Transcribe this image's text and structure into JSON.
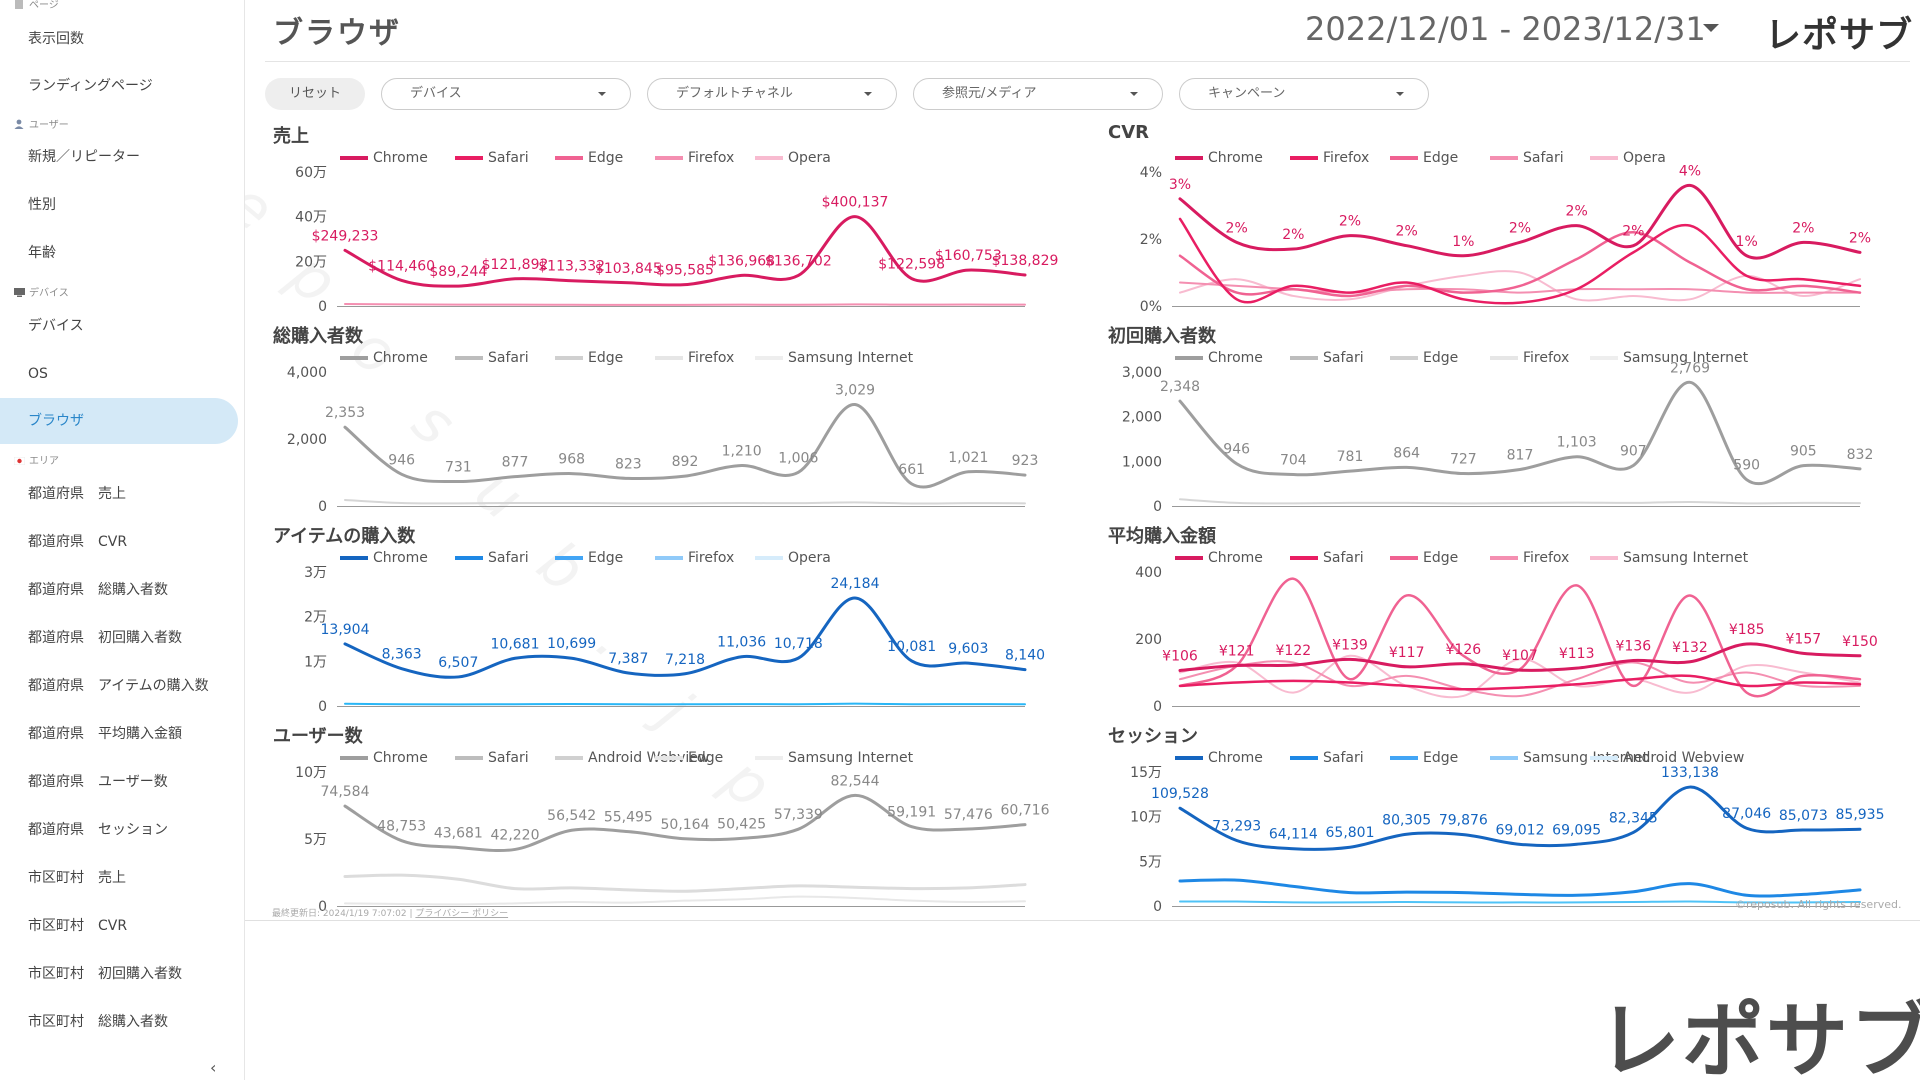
{
  "sidebar": {
    "items": [
      {
        "label": "表示回数",
        "y": 16,
        "active": false
      },
      {
        "label": "ランディングページ",
        "y": 63,
        "active": false
      },
      {
        "label": "新規／リピーター",
        "y": 134,
        "active": false
      },
      {
        "label": "性別",
        "y": 182,
        "active": false
      },
      {
        "label": "年齢",
        "y": 230,
        "active": false
      },
      {
        "label": "デバイス",
        "y": 303,
        "active": false
      },
      {
        "label": "OS",
        "y": 351,
        "active": false
      },
      {
        "label": "ブラウザ",
        "y": 398,
        "active": true
      },
      {
        "label": "都道府県　売上",
        "y": 471,
        "active": false
      },
      {
        "label": "都道府県　CVR",
        "y": 519,
        "active": false
      },
      {
        "label": "都道府県　総購入者数",
        "y": 567,
        "active": false
      },
      {
        "label": "都道府県　初回購入者数",
        "y": 615,
        "active": false
      },
      {
        "label": "都道府県　アイテムの購入数",
        "y": 663,
        "active": false
      },
      {
        "label": "都道府県　平均購入金額",
        "y": 711,
        "active": false
      },
      {
        "label": "都道府県　ユーザー数",
        "y": 759,
        "active": false
      },
      {
        "label": "都道府県　セッション",
        "y": 807,
        "active": false
      },
      {
        "label": "市区町村　売上",
        "y": 855,
        "active": false
      },
      {
        "label": "市区町村　CVR",
        "y": 903,
        "active": false
      },
      {
        "label": "市区町村　初回購入者数",
        "y": 951,
        "active": false
      },
      {
        "label": "市区町村　総購入者数",
        "y": 999,
        "active": false
      }
    ],
    "sections": [
      {
        "label": "ページ",
        "y": -4,
        "icon": "page-icon",
        "color": "#9aa"
      },
      {
        "label": "ユーザー",
        "y": 116,
        "icon": "user-icon",
        "color": "#7a8aa6"
      },
      {
        "label": "デバイス",
        "y": 284,
        "icon": "monitor-icon",
        "color": "#666"
      },
      {
        "label": "エリア",
        "y": 452,
        "icon": "japan-flag-icon",
        "color": "#d33"
      }
    ],
    "collapse_icon": "‹"
  },
  "header": {
    "title": "ブラウザ",
    "date_range": "2022/12/01 - 2023/12/31",
    "logo": "レポサブ"
  },
  "filters": {
    "reset_label": "リセット",
    "selects": [
      {
        "label": "デバイス",
        "x": 116
      },
      {
        "label": "デフォルトチャネル",
        "x": 382
      },
      {
        "label": "参照元/メディア",
        "x": 648
      },
      {
        "label": "キャンペーン",
        "x": 914
      }
    ]
  },
  "footer": {
    "last_updated": "最終更新日: 2024/1/19 7:07:02",
    "privacy": "プライバシー ポリシー",
    "copyright": "©reposub. All rights reserved."
  },
  "big_logo": "レポサブ",
  "watermark": [
    "r",
    "e",
    "p",
    "o",
    "s",
    "u",
    "b",
    ".",
    "j",
    "p"
  ],
  "chart_data": [
    {
      "type": "line",
      "title": "売上",
      "left": 265,
      "top": 122,
      "legend": [
        "Chrome",
        "Safari",
        "Edge",
        "Firefox",
        "Opera"
      ],
      "legend_colors": [
        "#d81b60",
        "#e91e63",
        "#f06292",
        "#f48fb1",
        "#f8bbd0"
      ],
      "label_color": "#d81b60",
      "ylim": [
        0,
        600000
      ],
      "yticks": [
        {
          "v": 0,
          "t": "0"
        },
        {
          "v": 200000,
          "t": "20万"
        },
        {
          "v": 400000,
          "t": "40万"
        },
        {
          "v": 600000,
          "t": "60万"
        }
      ],
      "series": [
        {
          "name": "Chrome",
          "color": "#d81b60",
          "width": 3,
          "values": [
            249233,
            114460,
            89244,
            121892,
            113332,
            103845,
            95585,
            136968,
            136702,
            400137,
            122598,
            160753,
            138829
          ],
          "labels": [
            "$249,233",
            "$114,460",
            "$89,244",
            "$121,892",
            "$113,332",
            "$103,845",
            "$95,585",
            "$136,968",
            "$136,702",
            "$400,137",
            "$122,598",
            "$160,753",
            "$138,829"
          ]
        },
        {
          "name": "Safari",
          "color": "#f48fb1",
          "width": 2,
          "values": [
            9000,
            7000,
            6000,
            6000,
            5500,
            5000,
            5000,
            6000,
            5500,
            7000,
            6000,
            6500,
            6000
          ]
        }
      ]
    },
    {
      "type": "line",
      "title": "CVR",
      "left": 1100,
      "top": 122,
      "legend": [
        "Chrome",
        "Firefox",
        "Edge",
        "Safari",
        "Opera"
      ],
      "legend_colors": [
        "#d81b60",
        "#e91e63",
        "#f06292",
        "#f48fb1",
        "#f8bbd0"
      ],
      "label_color": "#d81b60",
      "ylim": [
        0,
        4
      ],
      "yticks": [
        {
          "v": 0,
          "t": "0%"
        },
        {
          "v": 2,
          "t": "2%"
        },
        {
          "v": 4,
          "t": "4%"
        }
      ],
      "series": [
        {
          "name": "Chrome",
          "color": "#d81b60",
          "width": 3,
          "values": [
            3.2,
            1.9,
            1.7,
            2.1,
            1.8,
            1.5,
            1.9,
            2.4,
            1.8,
            3.6,
            1.5,
            1.9,
            1.6
          ],
          "labels": [
            "3%",
            "2%",
            "2%",
            "2%",
            "2%",
            "1%",
            "2%",
            "2%",
            "2%",
            "4%",
            "1%",
            "2%",
            "2%"
          ]
        },
        {
          "name": "Firefox",
          "color": "#e91e63",
          "width": 2.5,
          "values": [
            2.6,
            0.2,
            0.6,
            0.4,
            0.7,
            0.2,
            0.1,
            0.5,
            1.6,
            2.4,
            0.9,
            0.8,
            0.6
          ]
        },
        {
          "name": "Edge",
          "color": "#f06292",
          "width": 2.5,
          "values": [
            1.5,
            0.4,
            0.5,
            0.3,
            0.6,
            0.4,
            0.6,
            1.4,
            2.2,
            1.3,
            0.5,
            0.6,
            0.4
          ]
        },
        {
          "name": "Safari",
          "color": "#f48fb1",
          "width": 2,
          "values": [
            0.7,
            0.6,
            0.5,
            0.4,
            0.5,
            0.5,
            0.4,
            0.5,
            0.5,
            0.5,
            0.4,
            0.4,
            0.4
          ]
        },
        {
          "name": "Opera",
          "color": "#f8bbd0",
          "width": 2,
          "values": [
            0.4,
            0.8,
            0.3,
            0.2,
            0.6,
            0.9,
            1.0,
            0.2,
            0.3,
            0.2,
            0.9,
            0.3,
            0.8
          ]
        }
      ]
    },
    {
      "type": "line",
      "title": "総購入者数",
      "left": 265,
      "top": 322,
      "legend": [
        "Chrome",
        "Safari",
        "Edge",
        "Firefox",
        "Samsung Internet"
      ],
      "legend_colors": [
        "#9e9e9e",
        "#bdbdbd",
        "#d0d0d0",
        "#e6e6e6",
        "#eeeeee"
      ],
      "label_color": "#888888",
      "ylim": [
        0,
        4000
      ],
      "yticks": [
        {
          "v": 0,
          "t": "0"
        },
        {
          "v": 2000,
          "t": "2,000"
        },
        {
          "v": 4000,
          "t": "4,000"
        }
      ],
      "series": [
        {
          "name": "Chrome",
          "color": "#9e9e9e",
          "width": 3,
          "values": [
            2353,
            946,
            731,
            877,
            968,
            823,
            892,
            1210,
            1006,
            3029,
            661,
            1021,
            923
          ],
          "labels": [
            "2,353",
            "946",
            "731",
            "877",
            "968",
            "823",
            "892",
            "1,210",
            "1,006",
            "3,029",
            "661",
            "1,021",
            "923"
          ]
        },
        {
          "name": "Safari",
          "color": "#d6d6d6",
          "width": 2,
          "values": [
            180,
            90,
            80,
            90,
            90,
            80,
            80,
            90,
            85,
            110,
            75,
            85,
            80
          ]
        }
      ]
    },
    {
      "type": "line",
      "title": "初回購入者数",
      "left": 1100,
      "top": 322,
      "legend": [
        "Chrome",
        "Safari",
        "Edge",
        "Firefox",
        "Samsung Internet"
      ],
      "legend_colors": [
        "#9e9e9e",
        "#bdbdbd",
        "#d0d0d0",
        "#e6e6e6",
        "#eeeeee"
      ],
      "label_color": "#888888",
      "ylim": [
        0,
        3000
      ],
      "yticks": [
        {
          "v": 0,
          "t": "0"
        },
        {
          "v": 1000,
          "t": "1,000"
        },
        {
          "v": 2000,
          "t": "2,000"
        },
        {
          "v": 3000,
          "t": "3,000"
        }
      ],
      "series": [
        {
          "name": "Chrome",
          "color": "#9e9e9e",
          "width": 3,
          "values": [
            2348,
            946,
            704,
            781,
            864,
            727,
            817,
            1103,
            907,
            2769,
            590,
            905,
            832
          ],
          "labels": [
            "2,348",
            "946",
            "704",
            "781",
            "864",
            "727",
            "817",
            "1,103",
            "907",
            "2,769",
            "590",
            "905",
            "832"
          ]
        },
        {
          "name": "Safari",
          "color": "#d6d6d6",
          "width": 2,
          "values": [
            150,
            70,
            60,
            70,
            70,
            60,
            65,
            75,
            70,
            90,
            60,
            70,
            65
          ]
        }
      ]
    },
    {
      "type": "line",
      "title": "アイテムの購入数",
      "left": 265,
      "top": 522,
      "legend": [
        "Chrome",
        "Safari",
        "Edge",
        "Firefox",
        "Opera"
      ],
      "legend_colors": [
        "#1565c0",
        "#1e88e5",
        "#42a5f5",
        "#90caf9",
        "#d6ecfb"
      ],
      "label_color": "#1565c0",
      "ylim": [
        0,
        30000
      ],
      "yticks": [
        {
          "v": 0,
          "t": "0"
        },
        {
          "v": 10000,
          "t": "1万"
        },
        {
          "v": 20000,
          "t": "2万"
        },
        {
          "v": 30000,
          "t": "3万"
        }
      ],
      "series": [
        {
          "name": "Chrome",
          "color": "#1565c0",
          "width": 3,
          "values": [
            13904,
            8363,
            6507,
            10681,
            10699,
            7387,
            7218,
            11036,
            10718,
            24184,
            10081,
            9603,
            8140
          ],
          "labels": [
            "13,904",
            "8,363",
            "6,507",
            "10,681",
            "10,699",
            "7,387",
            "7,218",
            "11,036",
            "10,718",
            "24,184",
            "10,081",
            "9,603",
            "8,140"
          ]
        },
        {
          "name": "Safari",
          "color": "#29b6f6",
          "width": 2,
          "values": [
            500,
            400,
            350,
            400,
            450,
            380,
            380,
            420,
            400,
            520,
            400,
            420,
            400
          ]
        }
      ]
    },
    {
      "type": "line",
      "title": "平均購入金額",
      "left": 1100,
      "top": 522,
      "legend": [
        "Chrome",
        "Safari",
        "Edge",
        "Firefox",
        "Samsung Internet"
      ],
      "legend_colors": [
        "#d81b60",
        "#e91e63",
        "#f06292",
        "#f48fb1",
        "#f8bbd0"
      ],
      "label_color": "#d81b60",
      "ylim": [
        0,
        400
      ],
      "yticks": [
        {
          "v": 0,
          "t": "0"
        },
        {
          "v": 200,
          "t": "200"
        },
        {
          "v": 400,
          "t": "400"
        }
      ],
      "series": [
        {
          "name": "Chrome",
          "color": "#d81b60",
          "width": 3,
          "values": [
            106,
            121,
            122,
            139,
            117,
            126,
            107,
            113,
            136,
            132,
            185,
            157,
            150
          ],
          "labels": [
            "¥106",
            "¥121",
            "¥122",
            "¥139",
            "¥117",
            "¥126",
            "¥107",
            "¥113",
            "¥136",
            "¥132",
            "¥185",
            "¥157",
            "¥150"
          ]
        },
        {
          "name": "Safari",
          "color": "#e91e63",
          "width": 2.5,
          "values": [
            60,
            70,
            75,
            70,
            60,
            50,
            55,
            65,
            80,
            90,
            60,
            70,
            65
          ]
        },
        {
          "name": "Edge",
          "color": "#f06292",
          "width": 2.5,
          "values": [
            60,
            120,
            380,
            80,
            330,
            150,
            110,
            360,
            60,
            330,
            40,
            90,
            80
          ]
        },
        {
          "name": "Firefox",
          "color": "#f48fb1",
          "width": 2,
          "values": [
            80,
            120,
            130,
            60,
            90,
            50,
            30,
            80,
            130,
            70,
            100,
            60,
            60
          ]
        },
        {
          "name": "Samsung Internet",
          "color": "#f8bbd0",
          "width": 2,
          "values": [
            100,
            130,
            40,
            150,
            60,
            30,
            140,
            60,
            80,
            40,
            120,
            100,
            70
          ]
        }
      ]
    },
    {
      "type": "line",
      "title": "ユーザー数",
      "left": 265,
      "top": 722,
      "legend": [
        "Chrome",
        "Safari",
        "Android Webview",
        "Edge",
        "Samsung Internet"
      ],
      "legend_colors": [
        "#9e9e9e",
        "#bdbdbd",
        "#d0d0d0",
        "#e6e6e6",
        "#eeeeee"
      ],
      "label_color": "#888888",
      "ylim": [
        0,
        100000
      ],
      "yticks": [
        {
          "v": 0,
          "t": "0"
        },
        {
          "v": 50000,
          "t": "5万"
        },
        {
          "v": 100000,
          "t": "10万"
        }
      ],
      "series": [
        {
          "name": "Chrome",
          "color": "#9e9e9e",
          "width": 3,
          "values": [
            74584,
            48753,
            43681,
            42220,
            56542,
            55495,
            50164,
            50425,
            57339,
            82544,
            59191,
            57476,
            60716
          ],
          "labels": [
            "74,584",
            "48,753",
            "43,681",
            "42,220",
            "56,542",
            "55,495",
            "50,164",
            "50,425",
            "57,339",
            "82,544",
            "59,191",
            "57,476",
            "60,716"
          ]
        },
        {
          "name": "Safari",
          "color": "#dcdcdc",
          "width": 3,
          "values": [
            22000,
            23000,
            20000,
            13000,
            13500,
            12000,
            11000,
            13000,
            15000,
            14000,
            13000,
            13500,
            16000
          ]
        },
        {
          "name": "Android Webview",
          "color": "#e8e8e8",
          "width": 2,
          "values": [
            2000,
            1500,
            1200,
            2000,
            3000,
            2500,
            4000,
            5000,
            7000,
            6000,
            4000,
            3000,
            3500
          ]
        }
      ]
    },
    {
      "type": "line",
      "title": "セッション",
      "left": 1100,
      "top": 722,
      "legend": [
        "Chrome",
        "Safari",
        "Edge",
        "Samsung Internet",
        "Android Webview"
      ],
      "legend_colors": [
        "#1565c0",
        "#1e88e5",
        "#42a5f5",
        "#90caf9",
        "#d6ecfb"
      ],
      "label_color": "#1565c0",
      "ylim": [
        0,
        150000
      ],
      "yticks": [
        {
          "v": 0,
          "t": "0"
        },
        {
          "v": 50000,
          "t": "5万"
        },
        {
          "v": 100000,
          "t": "10万"
        },
        {
          "v": 150000,
          "t": "15万"
        }
      ],
      "series": [
        {
          "name": "Chrome",
          "color": "#1565c0",
          "width": 3,
          "values": [
            109528,
            73293,
            64114,
            65801,
            80305,
            79876,
            69012,
            69095,
            82345,
            133138,
            87046,
            85073,
            85935
          ],
          "labels": [
            "109,528",
            "73,293",
            "64,114",
            "65,801",
            "80,305",
            "79,876",
            "69,012",
            "69,095",
            "82,345",
            "133,138",
            "87,046",
            "85,073",
            "85,935"
          ]
        },
        {
          "name": "Safari",
          "color": "#1e88e5",
          "width": 3,
          "values": [
            28000,
            29000,
            22000,
            15000,
            15500,
            15000,
            13000,
            12000,
            16000,
            25000,
            12000,
            13000,
            18000
          ]
        },
        {
          "name": "Edge",
          "color": "#4fc3f7",
          "width": 2,
          "values": [
            5000,
            5000,
            4000,
            4000,
            4500,
            4000,
            4000,
            4000,
            4500,
            5000,
            4000,
            4000,
            4500
          ]
        }
      ]
    }
  ]
}
